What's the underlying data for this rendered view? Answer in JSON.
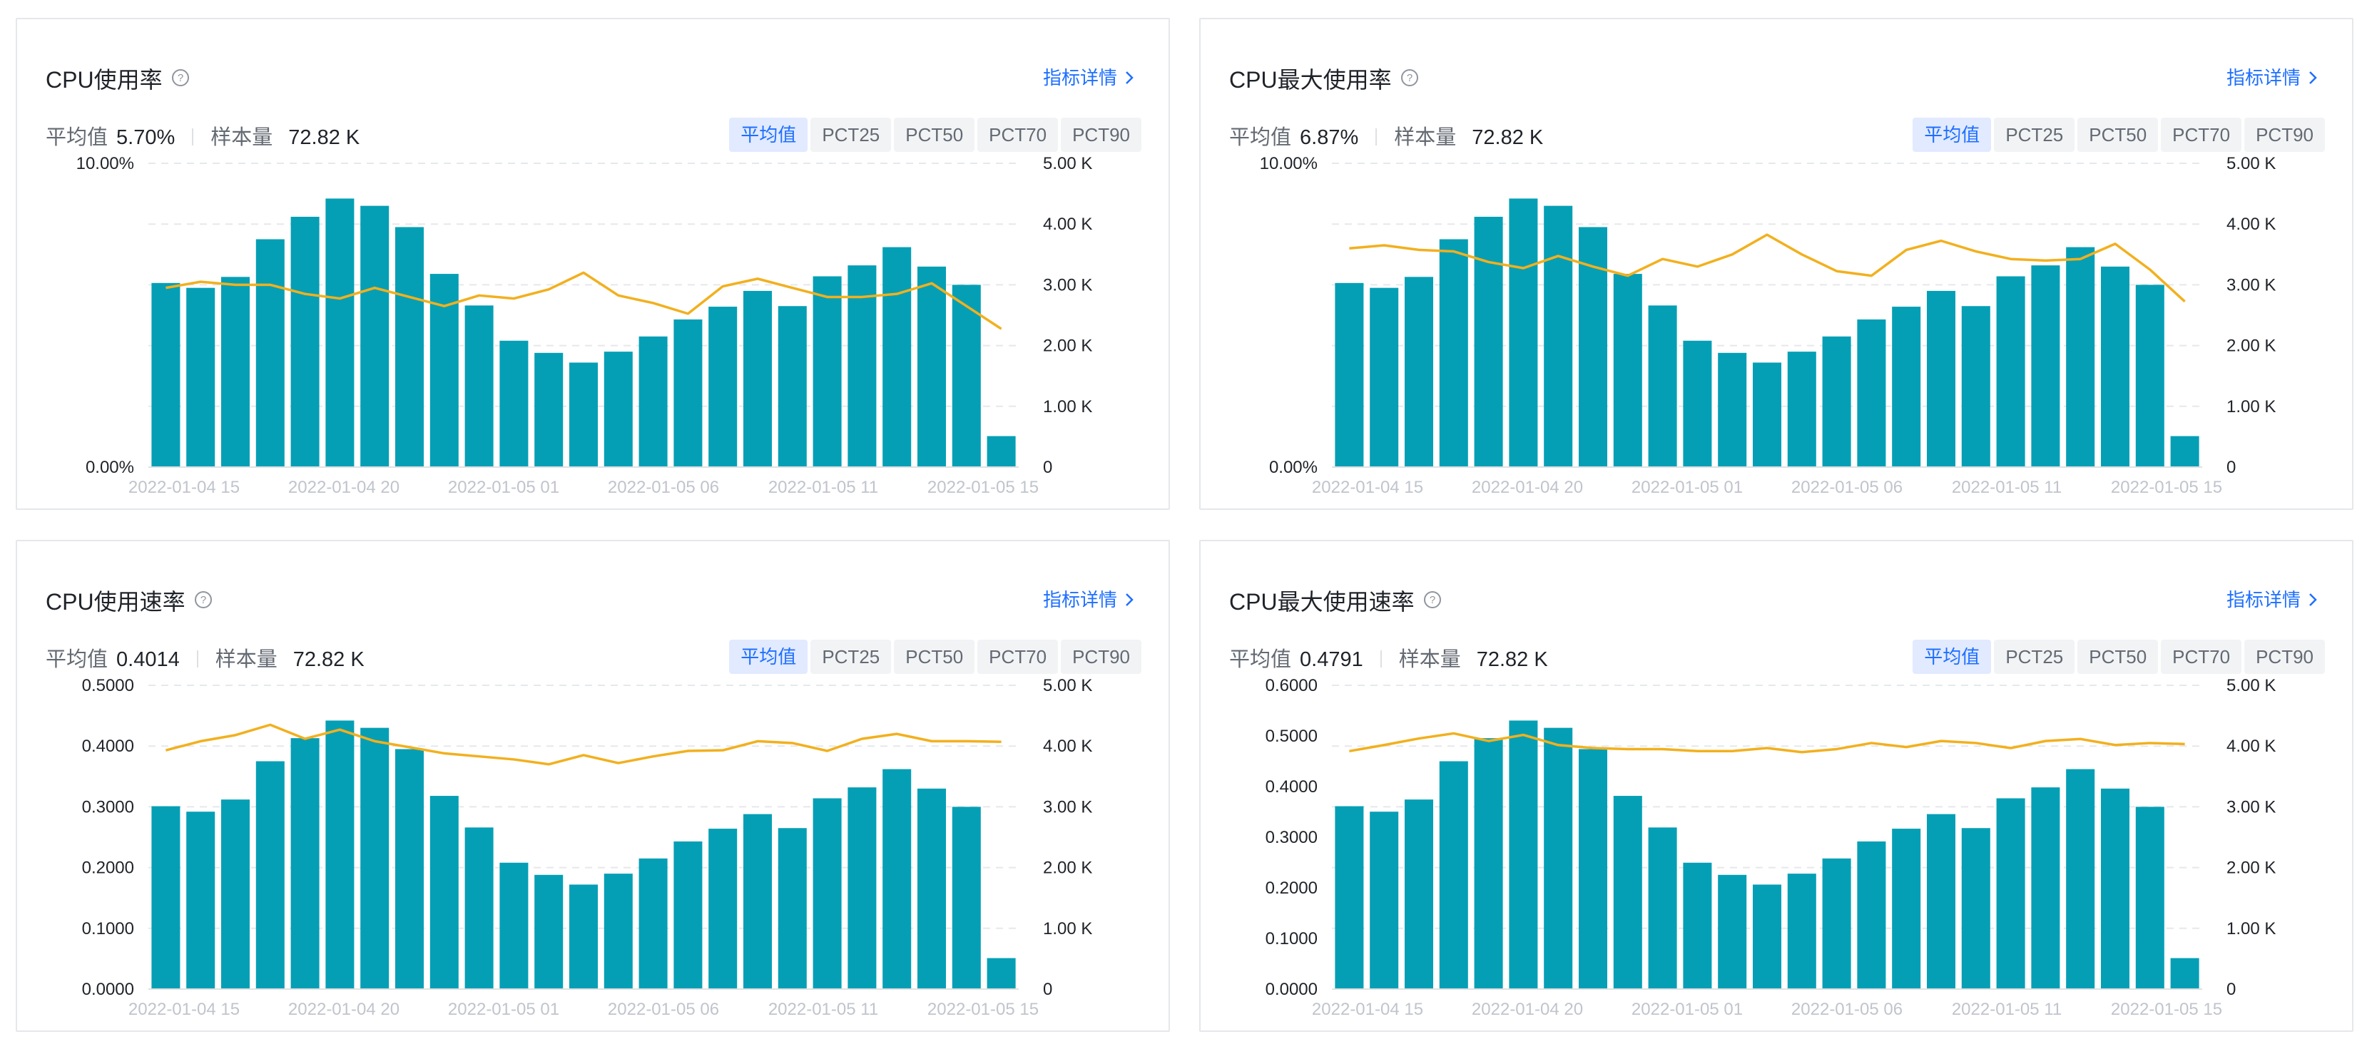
{
  "detail_label": "指标详情",
  "stats_labels": {
    "avg": "平均值",
    "samples": "样本量"
  },
  "segments": [
    "平均值",
    "PCT25",
    "PCT50",
    "PCT70",
    "PCT90"
  ],
  "colors": {
    "bar": "#059fb5",
    "line": "#f2b01e",
    "accent": "#1e6fff"
  },
  "x_tick_labels": [
    "2022-01-04 15",
    "2022-01-04 20",
    "2022-01-05 01",
    "2022-01-05 06",
    "2022-01-05 11",
    "2022-01-05 15"
  ],
  "chart_data": [
    {
      "type": "bar",
      "title": "CPU使用率",
      "avg_value": "5.70%",
      "sample_count": "72.82 K",
      "active_segment": "平均值",
      "left_axis": {
        "ticks": [
          "10.00%",
          "0.00%"
        ],
        "ylim": [
          0,
          10
        ]
      },
      "right_axis": {
        "ticks": [
          "5.00 K",
          "4.00 K",
          "3.00 K",
          "2.00 K",
          "1.00 K",
          "0"
        ],
        "ylim": [
          0,
          5000
        ]
      },
      "bar_values": [
        3030,
        2950,
        3130,
        3750,
        4120,
        4420,
        4300,
        3950,
        3180,
        2660,
        2080,
        1880,
        1720,
        1900,
        2150,
        2430,
        2640,
        2900,
        2650,
        3140,
        3320,
        3620,
        3300,
        3000,
        510
      ],
      "line_values": [
        5.9,
        6.1,
        6.0,
        6.0,
        5.7,
        5.55,
        5.9,
        5.6,
        5.3,
        5.65,
        5.55,
        5.85,
        6.4,
        5.65,
        5.4,
        5.05,
        5.95,
        6.2,
        5.9,
        5.6,
        5.6,
        5.7,
        6.05,
        5.3,
        4.55
      ]
    },
    {
      "type": "bar",
      "title": "CPU最大使用率",
      "avg_value": "6.87%",
      "sample_count": "72.82 K",
      "active_segment": "平均值",
      "left_axis": {
        "ticks": [
          "10.00%",
          "0.00%"
        ],
        "ylim": [
          0,
          10
        ]
      },
      "right_axis": {
        "ticks": [
          "5.00 K",
          "4.00 K",
          "3.00 K",
          "2.00 K",
          "1.00 K",
          "0"
        ],
        "ylim": [
          0,
          5000
        ]
      },
      "bar_values": [
        3030,
        2950,
        3130,
        3750,
        4120,
        4420,
        4300,
        3950,
        3180,
        2660,
        2080,
        1880,
        1720,
        1900,
        2150,
        2430,
        2640,
        2900,
        2650,
        3140,
        3320,
        3620,
        3300,
        3000,
        510
      ],
      "line_values": [
        7.2,
        7.3,
        7.15,
        7.1,
        6.75,
        6.55,
        6.95,
        6.6,
        6.3,
        6.85,
        6.6,
        7.0,
        7.65,
        7.0,
        6.45,
        6.3,
        7.15,
        7.45,
        7.1,
        6.85,
        6.8,
        6.85,
        7.35,
        6.5,
        5.45
      ]
    },
    {
      "type": "bar",
      "title": "CPU使用速率",
      "avg_value": "0.4014",
      "sample_count": "72.82 K",
      "active_segment": "平均值",
      "left_axis": {
        "ticks": [
          "0.5000",
          "0.4000",
          "0.3000",
          "0.2000",
          "0.1000",
          "0.0000"
        ],
        "ylim": [
          0,
          0.5
        ]
      },
      "right_axis": {
        "ticks": [
          "5.00 K",
          "4.00 K",
          "3.00 K",
          "2.00 K",
          "1.00 K",
          "0"
        ],
        "ylim": [
          0,
          5000
        ]
      },
      "bar_values": [
        3010,
        2920,
        3120,
        3750,
        4130,
        4420,
        4300,
        3950,
        3180,
        2660,
        2080,
        1880,
        1720,
        1900,
        2150,
        2430,
        2640,
        2880,
        2650,
        3140,
        3320,
        3620,
        3300,
        3000,
        510
      ],
      "line_values": [
        0.393,
        0.408,
        0.418,
        0.435,
        0.412,
        0.427,
        0.408,
        0.398,
        0.388,
        0.383,
        0.378,
        0.37,
        0.385,
        0.372,
        0.383,
        0.392,
        0.393,
        0.408,
        0.405,
        0.392,
        0.412,
        0.42,
        0.408,
        0.408,
        0.407
      ]
    },
    {
      "type": "bar",
      "title": "CPU最大使用速率",
      "avg_value": "0.4791",
      "sample_count": "72.82 K",
      "active_segment": "平均值",
      "left_axis": {
        "ticks": [
          "0.6000",
          "0.5000",
          "0.4000",
          "0.3000",
          "0.2000",
          "0.1000",
          "0.0000"
        ],
        "ylim": [
          0,
          0.6
        ]
      },
      "right_axis": {
        "ticks": [
          "5.00 K",
          "4.00 K",
          "3.00 K",
          "2.00 K",
          "1.00 K",
          "0"
        ],
        "ylim": [
          0,
          5000
        ]
      },
      "bar_values": [
        3010,
        2920,
        3120,
        3750,
        4130,
        4420,
        4300,
        3950,
        3180,
        2660,
        2080,
        1880,
        1720,
        1900,
        2150,
        2430,
        2640,
        2880,
        2650,
        3140,
        3320,
        3620,
        3300,
        3000,
        510
      ],
      "line_values": [
        0.47,
        0.482,
        0.495,
        0.505,
        0.49,
        0.502,
        0.482,
        0.476,
        0.474,
        0.474,
        0.47,
        0.47,
        0.476,
        0.468,
        0.474,
        0.486,
        0.478,
        0.49,
        0.486,
        0.476,
        0.49,
        0.494,
        0.482,
        0.486,
        0.484
      ]
    }
  ]
}
